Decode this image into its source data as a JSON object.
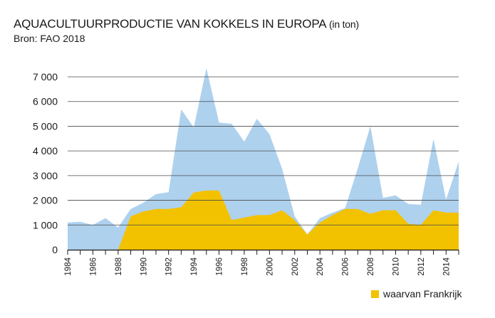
{
  "title": "AQUACULTUURPRODUCTIE VAN KOKKELS IN EUROPA",
  "title_unit": "(in ton)",
  "source": "Bron: FAO 2018",
  "colors": {
    "total": "#aed1ee",
    "france": "#f2c200",
    "grid": "#4a4a4a",
    "axis": "#1a1a1a"
  },
  "chart_data": {
    "type": "area",
    "title": "AQUACULTUURPRODUCTIE VAN KOKKELS IN EUROPA (in ton)",
    "xlabel": "",
    "ylabel": "",
    "xlim": [
      1984,
      2015
    ],
    "ylim": [
      0,
      7000
    ],
    "yticks": [
      0,
      1000,
      2000,
      3000,
      4000,
      5000,
      6000,
      7000
    ],
    "ytick_labels": [
      "0",
      "1 000",
      "2 000",
      "3 000",
      "4 000",
      "5 000",
      "6 000",
      "7 000"
    ],
    "xtick_labels": [
      "1984",
      "1986",
      "1988",
      "1990",
      "1992",
      "1994",
      "1996",
      "1998",
      "2000",
      "2002",
      "2004",
      "2006",
      "2008",
      "2010",
      "2012",
      "2014"
    ],
    "grid": true,
    "legend_position": "bottom-right",
    "x": [
      1984,
      1985,
      1986,
      1987,
      1988,
      1989,
      1990,
      1991,
      1992,
      1993,
      1994,
      1995,
      1996,
      1997,
      1998,
      1999,
      2000,
      2001,
      2002,
      2003,
      2004,
      2005,
      2006,
      2007,
      2008,
      2009,
      2010,
      2011,
      2012,
      2013,
      2014,
      2015
    ],
    "series": [
      {
        "key": "total",
        "values": [
          1100,
          1130,
          1000,
          1280,
          900,
          1650,
          1900,
          2250,
          2330,
          5680,
          4950,
          7350,
          5150,
          5100,
          4380,
          5300,
          4680,
          3280,
          1350,
          620,
          1280,
          1500,
          1680,
          3300,
          5000,
          2100,
          2200,
          1850,
          1820,
          4480,
          2030,
          3570
        ]
      },
      {
        "name": "waarvan Frankrijk",
        "key": "france",
        "values": [
          0,
          0,
          0,
          0,
          0,
          1350,
          1550,
          1650,
          1650,
          1720,
          2320,
          2400,
          2400,
          1200,
          1300,
          1400,
          1400,
          1600,
          1200,
          620,
          1100,
          1400,
          1650,
          1650,
          1450,
          1600,
          1600,
          1050,
          1000,
          1600,
          1500,
          1500
        ]
      }
    ]
  },
  "legend": {
    "label": "waarvan Frankrijk"
  }
}
